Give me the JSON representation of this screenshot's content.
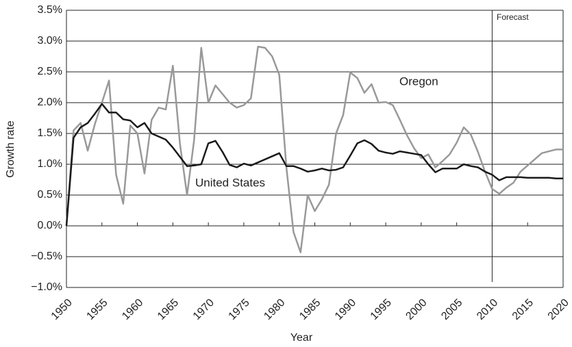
{
  "chart_data": {
    "type": "line",
    "x_label": "Year",
    "y_label": "Growth rate",
    "forecast_label": "Forecast",
    "forecast_x": 2010,
    "x": [
      1950,
      1951,
      1952,
      1953,
      1954,
      1955,
      1956,
      1957,
      1958,
      1959,
      1960,
      1961,
      1962,
      1963,
      1964,
      1965,
      1966,
      1967,
      1968,
      1969,
      1970,
      1971,
      1972,
      1973,
      1974,
      1975,
      1976,
      1977,
      1978,
      1979,
      1980,
      1981,
      1982,
      1983,
      1984,
      1985,
      1986,
      1987,
      1988,
      1989,
      1990,
      1991,
      1992,
      1993,
      1994,
      1995,
      1996,
      1997,
      1998,
      1999,
      2000,
      2001,
      2002,
      2003,
      2004,
      2005,
      2006,
      2007,
      2008,
      2009,
      2010,
      2011,
      2012,
      2013,
      2014,
      2015,
      2016,
      2017,
      2018,
      2019,
      2020
    ],
    "series": [
      {
        "name": "United States",
        "color": "#1a1a1a",
        "values": [
          0.0,
          1.43,
          1.6,
          1.67,
          1.82,
          1.98,
          1.84,
          1.84,
          1.73,
          1.71,
          1.6,
          1.67,
          1.5,
          1.45,
          1.4,
          1.27,
          1.12,
          0.97,
          0.98,
          1.0,
          1.34,
          1.38,
          1.2,
          0.99,
          0.95,
          1.01,
          0.98,
          1.03,
          1.08,
          1.13,
          1.18,
          0.97,
          0.97,
          0.93,
          0.88,
          0.9,
          0.93,
          0.9,
          0.91,
          0.95,
          1.14,
          1.34,
          1.39,
          1.33,
          1.22,
          1.19,
          1.17,
          1.21,
          1.19,
          1.17,
          1.15,
          1.0,
          0.87,
          0.93,
          0.93,
          0.93,
          1.0,
          0.97,
          0.95,
          0.88,
          0.83,
          0.74,
          0.79,
          0.79,
          0.79,
          0.78,
          0.78,
          0.78,
          0.78,
          0.77,
          0.77
        ]
      },
      {
        "name": "Oregon",
        "color": "#999999",
        "values": [
          0.0,
          1.55,
          1.67,
          1.22,
          1.65,
          2.0,
          2.36,
          0.83,
          0.36,
          1.63,
          1.5,
          0.85,
          1.72,
          1.92,
          1.89,
          2.6,
          1.33,
          0.5,
          1.4,
          2.89,
          2.0,
          2.28,
          2.14,
          2.0,
          1.92,
          1.96,
          2.07,
          2.91,
          2.89,
          2.75,
          2.45,
          0.95,
          -0.1,
          -0.43,
          0.5,
          0.24,
          0.43,
          0.67,
          1.5,
          1.8,
          2.49,
          2.4,
          2.16,
          2.3,
          2.0,
          2.01,
          1.96,
          1.72,
          1.47,
          1.26,
          1.1,
          1.16,
          0.95,
          1.05,
          1.16,
          1.35,
          1.6,
          1.48,
          1.2,
          0.88,
          0.6,
          0.52,
          0.62,
          0.7,
          0.88,
          0.98,
          1.08,
          1.18,
          1.21,
          1.24,
          1.24
        ]
      }
    ],
    "xlim": [
      1950,
      2020
    ],
    "xticks": [
      1950,
      1955,
      1960,
      1965,
      1970,
      1975,
      1980,
      1985,
      1990,
      1995,
      2000,
      2005,
      2010,
      2015,
      2020
    ],
    "ylim": [
      -1.0,
      3.5
    ],
    "yticks": [
      {
        "value": -1.0,
        "label": "−1.0%"
      },
      {
        "value": -0.5,
        "label": "−0.5%"
      },
      {
        "value": 0.0,
        "label": "0.0%"
      },
      {
        "value": 0.5,
        "label": "0.5%"
      },
      {
        "value": 1.0,
        "label": "1.0%"
      },
      {
        "value": 1.5,
        "label": "1.5%"
      },
      {
        "value": 2.0,
        "label": "2.0%"
      },
      {
        "value": 2.5,
        "label": "2.5%"
      },
      {
        "value": 3.0,
        "label": "3.0%"
      },
      {
        "value": 3.5,
        "label": "3.5%"
      }
    ],
    "grid": true
  }
}
